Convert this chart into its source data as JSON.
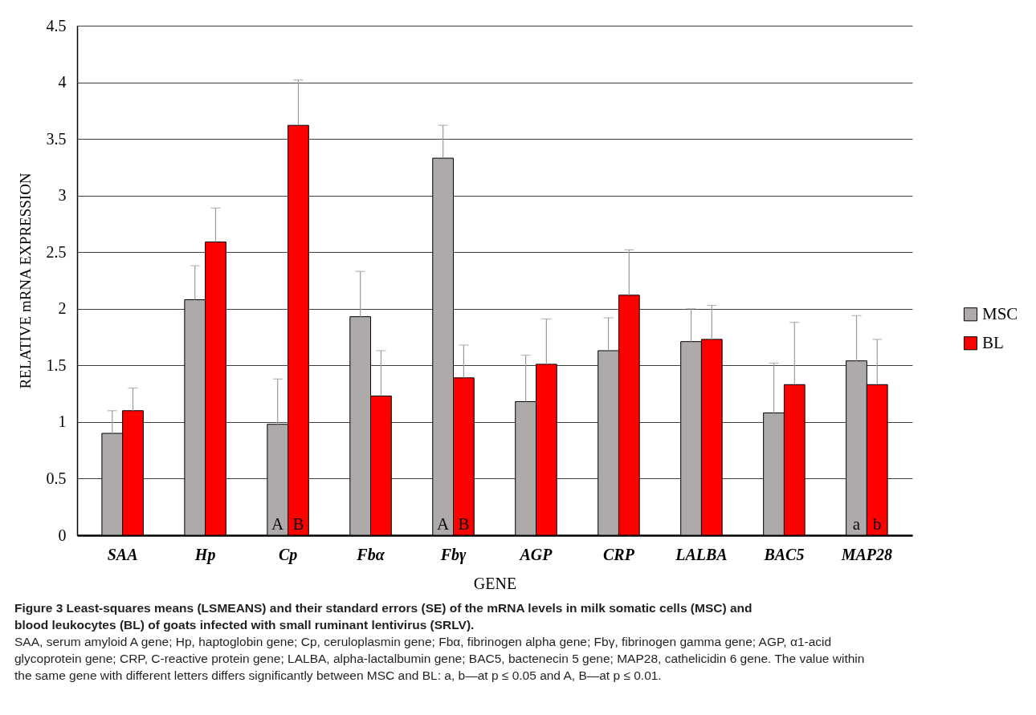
{
  "chart_data": {
    "type": "bar",
    "title": "Figure 3  Least-squares means (LSMEANS) and their standard errors (SE) of the mRNA levels in milk somatic cells (MSC) and blood leukocytes (BL) of goats infected with small ruminant lentivirus (SRLV).",
    "xlabel": "GENE",
    "ylabel": "RELATIVE mRNA EXPRESSION",
    "categories": [
      "SAA",
      "Hp",
      "Cp",
      "Fbα",
      "Fbγ",
      "AGP",
      "CRP",
      "LALBA",
      "BAC5",
      "MAP28"
    ],
    "series": [
      {
        "name": "MSC",
        "color": "#aeaaaa",
        "values": [
          0.9,
          2.08,
          0.98,
          1.93,
          3.33,
          1.18,
          1.63,
          1.71,
          1.08,
          1.54
        ],
        "errors": [
          [
            0.9,
            1.1
          ],
          [
            2.08,
            2.38
          ],
          [
            0.98,
            1.38
          ],
          [
            1.93,
            2.33
          ],
          [
            3.33,
            3.62
          ],
          [
            1.18,
            1.59
          ],
          [
            1.63,
            1.92
          ],
          [
            1.71,
            2.0
          ],
          [
            1.08,
            1.52
          ],
          [
            1.54,
            1.94
          ]
        ]
      },
      {
        "name": "BL",
        "color": "#ff0000",
        "values": [
          1.1,
          2.59,
          3.62,
          1.23,
          1.39,
          1.51,
          2.12,
          1.73,
          1.33,
          1.33
        ],
        "errors": [
          [
            1.1,
            1.3
          ],
          [
            2.59,
            2.89
          ],
          [
            3.62,
            4.02
          ],
          [
            1.23,
            1.63
          ],
          [
            1.39,
            1.68
          ],
          [
            1.51,
            1.91
          ],
          [
            2.12,
            2.52
          ],
          [
            1.73,
            2.03
          ],
          [
            1.33,
            1.88
          ],
          [
            1.33,
            1.73
          ]
        ]
      }
    ],
    "ylim": [
      0,
      4.5
    ],
    "yticks": [
      0,
      0.5,
      1,
      1.5,
      2,
      2.5,
      3,
      3.5,
      4,
      4.5
    ],
    "grid": "y",
    "legend": "right",
    "annotations": [
      {
        "text": "A",
        "x": "Cp",
        "y": 0
      },
      {
        "text": "B",
        "x": "Cp",
        "y": 0
      },
      {
        "text": "A",
        "x": "Fbγ",
        "y": 0
      },
      {
        "text": "B",
        "x": "Fbγ",
        "y": 0
      },
      {
        "text": "a",
        "x": "MAP28",
        "y": 0
      },
      {
        "text": "b",
        "x": "MAP28",
        "y": 0
      },
      "SAA, serum amyloid A gene; Hp, haptoglobin gene; Cp, ceruloplasmin gene; Fbα, fibrinogen alpha gene; Fbγ, fibrinogen gamma gene; AGP, α1-acid glycoprotein gene; CRP, C-reactive protein gene; LALBA, alpha-lactalbumin gene; BAC5, bactenecin 5 gene; MAP28, cathelicidin 6 gene. The value within the same gene with different letters differs significantly between MSC and BL: a, b—at p ≤ 0.05 and A, B—at p ≤ 0.01."
    ]
  }
}
